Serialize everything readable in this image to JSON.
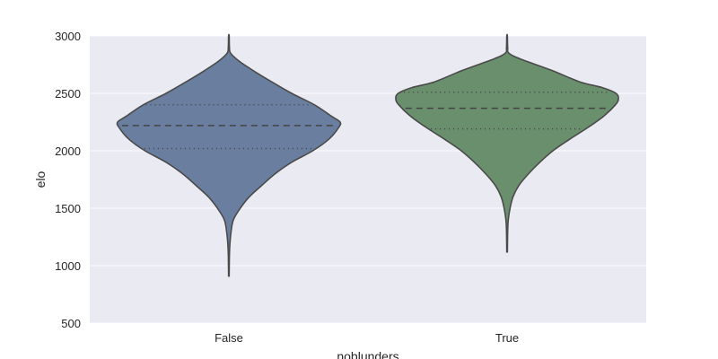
{
  "chart_data": {
    "type": "violin",
    "xlabel": "noblunders",
    "ylabel": "elo",
    "ylim": [
      500,
      3000
    ],
    "yticks": [
      500,
      1000,
      1500,
      2000,
      2500,
      3000
    ],
    "grid": true,
    "categories": [
      "False",
      "True"
    ],
    "series": [
      {
        "category": "False",
        "color": "#6a7fa0",
        "min": 910,
        "max": 3000,
        "q1": 2020,
        "median": 2220,
        "q3": 2400,
        "profile": [
          [
            910,
            0.5
          ],
          [
            1100,
            1
          ],
          [
            1200,
            2
          ],
          [
            1300,
            4
          ],
          [
            1400,
            8
          ],
          [
            1500,
            20
          ],
          [
            1600,
            36
          ],
          [
            1700,
            58
          ],
          [
            1800,
            81
          ],
          [
            1900,
            110
          ],
          [
            2000,
            147
          ],
          [
            2100,
            175
          ],
          [
            2200,
            192
          ],
          [
            2250,
            195
          ],
          [
            2300,
            180
          ],
          [
            2400,
            150
          ],
          [
            2500,
            110
          ],
          [
            2600,
            75
          ],
          [
            2700,
            42
          ],
          [
            2780,
            18
          ],
          [
            2850,
            3
          ],
          [
            2900,
            1
          ],
          [
            3000,
            0.5
          ]
        ]
      },
      {
        "category": "True",
        "color": "#6a8f6d",
        "min": 1120,
        "max": 3000,
        "q1": 2190,
        "median": 2370,
        "q3": 2510,
        "profile": [
          [
            1120,
            0.5
          ],
          [
            1300,
            1
          ],
          [
            1400,
            2
          ],
          [
            1500,
            5
          ],
          [
            1600,
            10
          ],
          [
            1700,
            20
          ],
          [
            1800,
            36
          ],
          [
            1900,
            55
          ],
          [
            2000,
            77
          ],
          [
            2100,
            105
          ],
          [
            2200,
            135
          ],
          [
            2300,
            162
          ],
          [
            2400,
            182
          ],
          [
            2450,
            187
          ],
          [
            2500,
            183
          ],
          [
            2550,
            160
          ],
          [
            2600,
            122
          ],
          [
            2700,
            75
          ],
          [
            2800,
            22
          ],
          [
            2850,
            3
          ],
          [
            2900,
            1
          ],
          [
            3000,
            0.5
          ]
        ]
      }
    ]
  }
}
